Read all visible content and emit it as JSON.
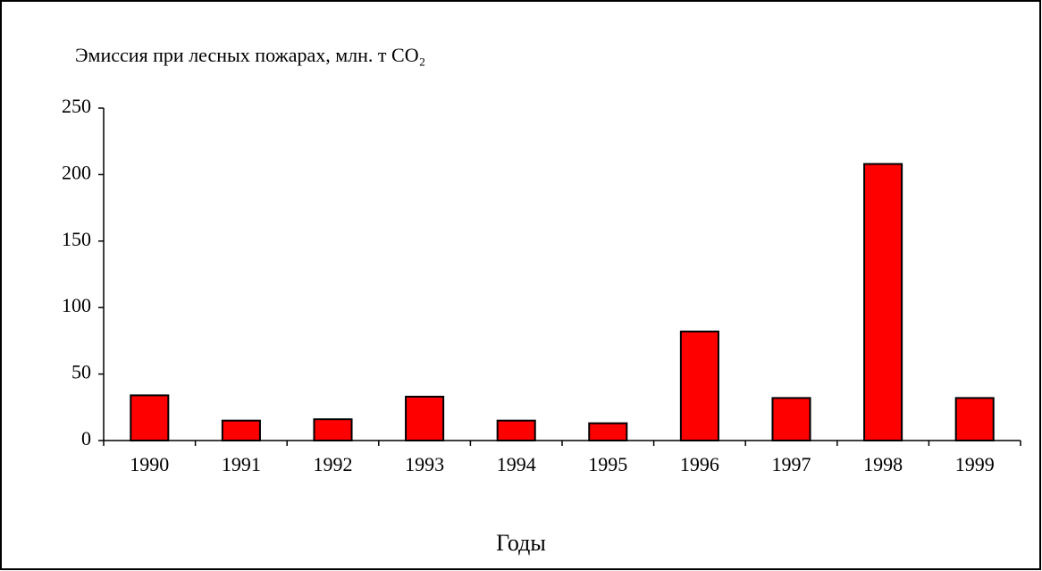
{
  "chart_data": {
    "type": "bar",
    "title": "Эмиссия при лесных пожарах, млн. т CO₂",
    "x_label": "Годы",
    "categories": [
      "1990",
      "1991",
      "1992",
      "1993",
      "1994",
      "1995",
      "1996",
      "1997",
      "1998",
      "1999"
    ],
    "values": [
      34,
      15,
      16,
      33,
      15,
      13,
      82,
      32,
      208,
      32
    ],
    "color": "#ff0000",
    "ylim": [
      0,
      250
    ],
    "yticks": [
      0,
      50,
      100,
      150,
      200,
      250
    ],
    "grid": false
  }
}
